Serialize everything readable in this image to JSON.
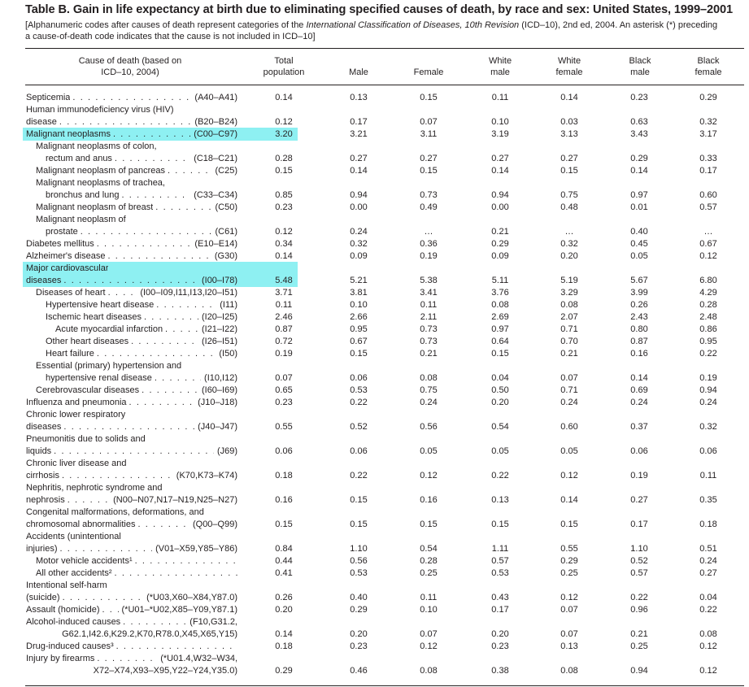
{
  "title": "Table B. Gain in life expectancy at birth due to eliminating specified causes of death, by race and sex: United States, 1999–2001",
  "note": {
    "line1_before": "[Alphanumeric codes after causes of death represent categories of the ",
    "line1_italic": "International Classification of Diseases, 10th Revision",
    "line1_after": " (ICD–10), 2nd ed, 2004. An asterisk (*) preceding",
    "line2": "a cause-of-death code indicates that the cause is not included in ICD–10]"
  },
  "columns": {
    "cause": [
      "Cause of death (based on",
      "ICD–10, 2004)"
    ],
    "total": [
      "Total",
      "population"
    ],
    "male": [
      "Male"
    ],
    "female": [
      "Female"
    ],
    "white_male": [
      "White",
      "male"
    ],
    "white_female": [
      "White",
      "female"
    ],
    "black_male": [
      "Black",
      "male"
    ],
    "black_female": [
      "Black",
      "female"
    ]
  },
  "highlight_color": "#8ef0f2",
  "rows": [
    {
      "lines": [
        "Septicemia"
      ],
      "indent": 0,
      "code": "(A40–A41)",
      "v": [
        "0.14",
        "0.13",
        "0.15",
        "0.11",
        "0.14",
        "0.23",
        "0.29"
      ]
    },
    {
      "lines": [
        "Human immunodeficiency virus (HIV)",
        "disease"
      ],
      "indent": 0,
      "code": "(B20–B24)",
      "v": [
        "0.12",
        "0.17",
        "0.07",
        "0.10",
        "0.03",
        "0.63",
        "0.32"
      ]
    },
    {
      "lines": [
        "Malignant neoplasms"
      ],
      "indent": 0,
      "code": "(C00–C97)",
      "v": [
        "3.20",
        "3.21",
        "3.11",
        "3.19",
        "3.13",
        "3.43",
        "3.17"
      ],
      "highlight": true
    },
    {
      "lines": [
        "Malignant neoplasms of colon,",
        "rectum and anus"
      ],
      "indent": 1,
      "code": "(C18–C21)",
      "v": [
        "0.28",
        "0.27",
        "0.27",
        "0.27",
        "0.27",
        "0.29",
        "0.33"
      ]
    },
    {
      "lines": [
        "Malignant neoplasm of pancreas"
      ],
      "indent": 1,
      "code": "(C25)",
      "v": [
        "0.15",
        "0.14",
        "0.15",
        "0.14",
        "0.15",
        "0.14",
        "0.17"
      ]
    },
    {
      "lines": [
        "Malignant neoplasms of trachea,",
        "bronchus and lung"
      ],
      "indent": 1,
      "code": "(C33–C34)",
      "v": [
        "0.85",
        "0.94",
        "0.73",
        "0.94",
        "0.75",
        "0.97",
        "0.60"
      ]
    },
    {
      "lines": [
        "Malignant neoplasm of breast"
      ],
      "indent": 1,
      "code": "(C50)",
      "v": [
        "0.23",
        "0.00",
        "0.49",
        "0.00",
        "0.48",
        "0.01",
        "0.57"
      ]
    },
    {
      "lines": [
        "Malignant neoplasm of",
        "prostate"
      ],
      "indent": 1,
      "code": "(C61)",
      "v": [
        "0.12",
        "0.24",
        "…",
        "0.21",
        "…",
        "0.40",
        "…"
      ]
    },
    {
      "lines": [
        "Diabetes mellitus"
      ],
      "indent": 0,
      "code": "(E10–E14)",
      "v": [
        "0.34",
        "0.32",
        "0.36",
        "0.29",
        "0.32",
        "0.45",
        "0.67"
      ]
    },
    {
      "lines": [
        "Alzheimer's disease"
      ],
      "indent": 0,
      "code": "(G30)",
      "v": [
        "0.14",
        "0.09",
        "0.19",
        "0.09",
        "0.20",
        "0.05",
        "0.12"
      ]
    },
    {
      "lines": [
        "Major cardiovascular",
        "diseases"
      ],
      "indent": 0,
      "code": "(I00–I78)",
      "v": [
        "5.48",
        "5.21",
        "5.38",
        "5.11",
        "5.19",
        "5.67",
        "6.80"
      ],
      "highlight": true
    },
    {
      "lines": [
        "Diseases of heart"
      ],
      "indent": 1,
      "code": "(I00–I09,I11,I13,I20–I51)",
      "v": [
        "3.71",
        "3.81",
        "3.41",
        "3.76",
        "3.29",
        "3.99",
        "4.29"
      ]
    },
    {
      "lines": [
        "Hypertensive heart disease"
      ],
      "indent": 2,
      "code": "(I11)",
      "v": [
        "0.11",
        "0.10",
        "0.11",
        "0.08",
        "0.08",
        "0.26",
        "0.28"
      ]
    },
    {
      "lines": [
        "Ischemic heart diseases"
      ],
      "indent": 2,
      "code": "(I20–I25)",
      "v": [
        "2.46",
        "2.66",
        "2.11",
        "2.69",
        "2.07",
        "2.43",
        "2.48"
      ]
    },
    {
      "lines": [
        "Acute myocardial infarction"
      ],
      "indent": 3,
      "code": "(I21–I22)",
      "v": [
        "0.87",
        "0.95",
        "0.73",
        "0.97",
        "0.71",
        "0.80",
        "0.86"
      ]
    },
    {
      "lines": [
        "Other heart diseases"
      ],
      "indent": 2,
      "code": "(I26–I51)",
      "v": [
        "0.72",
        "0.67",
        "0.73",
        "0.64",
        "0.70",
        "0.87",
        "0.95"
      ]
    },
    {
      "lines": [
        "Heart failure"
      ],
      "indent": 2,
      "code": "(I50)",
      "v": [
        "0.19",
        "0.15",
        "0.21",
        "0.15",
        "0.21",
        "0.16",
        "0.22"
      ]
    },
    {
      "lines": [
        "Essential (primary) hypertension and",
        "hypertensive renal disease"
      ],
      "indent": 1,
      "code": "(I10,I12)",
      "v": [
        "0.07",
        "0.06",
        "0.08",
        "0.04",
        "0.07",
        "0.14",
        "0.19"
      ]
    },
    {
      "lines": [
        "Cerebrovascular diseases"
      ],
      "indent": 1,
      "code": "(I60–I69)",
      "v": [
        "0.65",
        "0.53",
        "0.75",
        "0.50",
        "0.71",
        "0.69",
        "0.94"
      ]
    },
    {
      "lines": [
        "Influenza and pneumonia"
      ],
      "indent": 0,
      "code": "(J10–J18)",
      "v": [
        "0.23",
        "0.22",
        "0.24",
        "0.20",
        "0.24",
        "0.24",
        "0.24"
      ]
    },
    {
      "lines": [
        "Chronic lower respiratory",
        "diseases"
      ],
      "indent": 0,
      "code": "(J40–J47)",
      "v": [
        "0.55",
        "0.52",
        "0.56",
        "0.54",
        "0.60",
        "0.37",
        "0.32"
      ]
    },
    {
      "lines": [
        "Pneumonitis due to solids and",
        "liquids"
      ],
      "indent": 0,
      "code": "(J69)",
      "v": [
        "0.06",
        "0.06",
        "0.05",
        "0.05",
        "0.05",
        "0.06",
        "0.06"
      ]
    },
    {
      "lines": [
        "Chronic liver disease and",
        "cirrhosis"
      ],
      "indent": 0,
      "code": "(K70,K73–K74)",
      "v": [
        "0.18",
        "0.22",
        "0.12",
        "0.22",
        "0.12",
        "0.19",
        "0.11"
      ]
    },
    {
      "lines": [
        "Nephritis, nephrotic syndrome and",
        "nephrosis"
      ],
      "indent": 0,
      "code": "(N00–N07,N17–N19,N25–N27)",
      "v": [
        "0.16",
        "0.15",
        "0.16",
        "0.13",
        "0.14",
        "0.27",
        "0.35"
      ]
    },
    {
      "lines": [
        "Congenital malformations, deformations, and",
        "chromosomal abnormalities"
      ],
      "indent": 0,
      "code": "(Q00–Q99)",
      "v": [
        "0.15",
        "0.15",
        "0.15",
        "0.15",
        "0.15",
        "0.17",
        "0.18"
      ]
    },
    {
      "lines": [
        "Accidents (unintentional",
        "injuries)"
      ],
      "indent": 0,
      "code": "(V01–X59,Y85–Y86)",
      "v": [
        "0.84",
        "1.10",
        "0.54",
        "1.11",
        "0.55",
        "1.10",
        "0.51"
      ]
    },
    {
      "lines": [
        "Motor vehicle accidents¹"
      ],
      "indent": 1,
      "code": "",
      "v": [
        "0.44",
        "0.56",
        "0.28",
        "0.57",
        "0.29",
        "0.52",
        "0.24"
      ]
    },
    {
      "lines": [
        "All other accidents²"
      ],
      "indent": 1,
      "code": "",
      "v": [
        "0.41",
        "0.53",
        "0.25",
        "0.53",
        "0.25",
        "0.57",
        "0.27"
      ]
    },
    {
      "lines": [
        "Intentional self-harm",
        "(suicide)"
      ],
      "indent": 0,
      "code": "(*U03,X60–X84,Y87.0)",
      "v": [
        "0.26",
        "0.40",
        "0.11",
        "0.43",
        "0.12",
        "0.22",
        "0.04"
      ]
    },
    {
      "lines": [
        "Assault (homicide)"
      ],
      "indent": 0,
      "code": "(*U01–*U02,X85–Y09,Y87.1)",
      "v": [
        "0.20",
        "0.29",
        "0.10",
        "0.17",
        "0.07",
        "0.96",
        "0.22"
      ]
    },
    {
      "lines": [
        "Alcohol-induced causes"
      ],
      "indent": 0,
      "code": "(F10,G31.2,",
      "code2": "G62.1,I42.6,K29.2,K70,R78.0,X45,X65,Y15)",
      "v": [
        "0.14",
        "0.20",
        "0.07",
        "0.20",
        "0.07",
        "0.21",
        "0.08"
      ]
    },
    {
      "lines": [
        "Drug-induced causes³"
      ],
      "indent": 0,
      "code": "",
      "v": [
        "0.18",
        "0.23",
        "0.12",
        "0.23",
        "0.13",
        "0.25",
        "0.12"
      ]
    },
    {
      "lines": [
        "Injury by firearms"
      ],
      "indent": 0,
      "code": "(*U01.4,W32–W34,",
      "code2": "X72–X74,X93–X95,Y22–Y24,Y35.0)",
      "v": [
        "0.29",
        "0.46",
        "0.08",
        "0.38",
        "0.08",
        "0.94",
        "0.12"
      ]
    }
  ]
}
